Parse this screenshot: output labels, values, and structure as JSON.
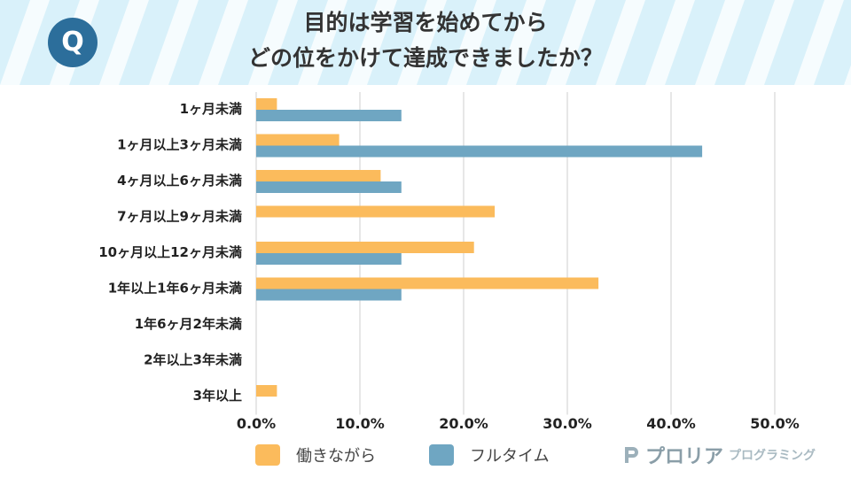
{
  "header": {
    "badge_letter": "Q",
    "title_line1": "目的は学習を始めてから",
    "title_line2": "どの位をかけて達成できましたか？"
  },
  "colors": {
    "header_bg": "#d9f1fa",
    "stripe": "#ffffff",
    "badge": "#2c6e9b",
    "series_working": "#fbbb5c",
    "series_fulltime": "#6fa6c2",
    "grid": "#cfcfcf"
  },
  "chart_data": {
    "type": "bar",
    "orientation": "horizontal",
    "categories": [
      "1ヶ月未満",
      "1ヶ月以上3ヶ月未満",
      "4ヶ月以上6ヶ月未満",
      "7ヶ月以上9ヶ月未満",
      "10ヶ月以上12ヶ月未満",
      "1年以上1年6ヶ月未満",
      "1年6ヶ月2年未満",
      "2年以上3年未満",
      "3年以上"
    ],
    "series": [
      {
        "name": "働きながら",
        "color": "#fbbb5c",
        "values": [
          2,
          8,
          12,
          23,
          21,
          33,
          0,
          0,
          2
        ]
      },
      {
        "name": "フルタイム",
        "color": "#6fa6c2",
        "values": [
          14,
          43,
          14,
          0,
          14,
          14,
          0,
          0,
          0
        ]
      }
    ],
    "xlim": [
      0,
      50
    ],
    "x_ticks": [
      "0.0%",
      "10.0%",
      "20.0%",
      "30.0%",
      "40.0%",
      "50.0%"
    ],
    "x_tick_values": [
      0,
      10,
      20,
      30,
      40,
      50
    ],
    "grid": true,
    "legend_position": "bottom"
  },
  "legend": {
    "working_label": "働きながら",
    "fulltime_label": "フルタイム"
  },
  "brand": {
    "name": "プロリア",
    "sub": "プログラミング"
  }
}
